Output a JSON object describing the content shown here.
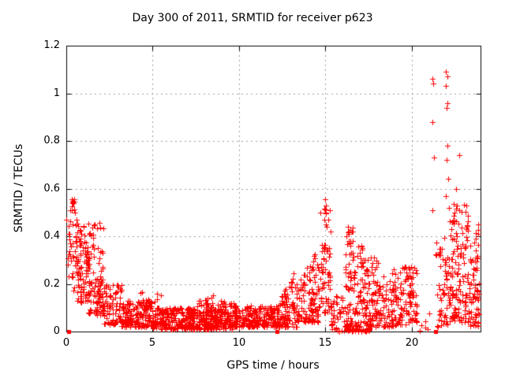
{
  "chart_data": {
    "type": "scatter",
    "title": "Day 300 of 2011, SRMTID for receiver p623",
    "xlabel": "GPS time / hours",
    "ylabel": "SRMTID / TECUs",
    "xlim": [
      0,
      24
    ],
    "ylim": [
      0,
      1.2
    ],
    "x_ticks": {
      "values": [
        0,
        5,
        10,
        15,
        20
      ],
      "labels": [
        "0",
        "5",
        "10",
        "15",
        "20"
      ]
    },
    "y_ticks": {
      "values": [
        0,
        0.2,
        0.4,
        0.6,
        0.8,
        1.0,
        1.2
      ],
      "labels": [
        "0",
        "0.2",
        "0.4",
        "0.6",
        "0.8",
        "1",
        "1.2"
      ]
    },
    "grid": true,
    "legend": "none",
    "colors": {
      "marker": "#ff0000",
      "border": "#000000",
      "grid": "#9c9c9c",
      "background": "#ffffff"
    },
    "marker_styles": {
      "main_series": "plus",
      "zero_flags": "filled-square"
    },
    "square_points": [
      [
        0.15,
        0
      ],
      [
        12.2,
        0
      ],
      [
        21.4,
        0
      ]
    ],
    "outlier_points": [
      [
        0.02,
        0.47
      ],
      [
        0.3,
        0.555
      ],
      [
        0.36,
        0.55
      ],
      [
        0.42,
        0.54
      ],
      [
        0.33,
        0.525
      ],
      [
        1.9,
        0.455
      ],
      [
        1.95,
        0.435
      ],
      [
        15.0,
        0.555
      ],
      [
        15.03,
        0.53
      ],
      [
        15.06,
        0.5
      ],
      [
        14.97,
        0.47
      ],
      [
        15.1,
        0.44
      ],
      [
        16.3,
        0.44
      ],
      [
        16.36,
        0.42
      ],
      [
        21.2,
        1.06
      ],
      [
        21.27,
        1.04
      ],
      [
        21.2,
        0.88
      ],
      [
        21.3,
        0.73
      ],
      [
        21.22,
        0.51
      ],
      [
        22.0,
        1.09
      ],
      [
        22.07,
        1.07
      ],
      [
        22.0,
        1.03
      ],
      [
        22.1,
        0.96
      ],
      [
        22.03,
        0.94
      ],
      [
        22.1,
        0.78
      ],
      [
        22.05,
        0.72
      ],
      [
        22.12,
        0.64
      ],
      [
        22.0,
        0.57
      ],
      [
        22.15,
        0.52
      ],
      [
        22.75,
        0.74
      ],
      [
        22.6,
        0.6
      ],
      [
        23.88,
        0.45
      ],
      [
        23.84,
        0.41
      ]
    ],
    "density_clusters": [
      {
        "x0": 0.05,
        "x1": 0.6,
        "n": 28,
        "y0": 0.15,
        "y1": 0.5,
        "pow": 0.8
      },
      {
        "x0": 0.25,
        "x1": 0.5,
        "n": 10,
        "y0": 0.5,
        "y1": 0.56,
        "pow": 1
      },
      {
        "x0": 0.5,
        "x1": 1.3,
        "n": 95,
        "y0": 0.12,
        "y1": 0.47,
        "pow": 1.3
      },
      {
        "x0": 1.3,
        "x1": 2.15,
        "n": 95,
        "y0": 0.07,
        "y1": 0.46,
        "pow": 1.7
      },
      {
        "x0": 2.15,
        "x1": 3.2,
        "n": 85,
        "y0": 0.03,
        "y1": 0.2,
        "pow": 1.7
      },
      {
        "x0": 3.2,
        "x1": 5.0,
        "n": 170,
        "y0": 0.02,
        "y1": 0.13,
        "pow": 1.5
      },
      {
        "x0": 5.0,
        "x1": 7.5,
        "n": 230,
        "y0": 0.01,
        "y1": 0.1,
        "pow": 1.4
      },
      {
        "x0": 7.5,
        "x1": 9.7,
        "n": 230,
        "y0": 0.01,
        "y1": 0.12,
        "pow": 1.4
      },
      {
        "x0": 9.7,
        "x1": 12.2,
        "n": 210,
        "y0": 0.02,
        "y1": 0.11,
        "pow": 1.4
      },
      {
        "x0": 4.3,
        "x1": 5.6,
        "n": 14,
        "y0": 0.1,
        "y1": 0.17,
        "pow": 1
      },
      {
        "x0": 7.6,
        "x1": 9.6,
        "n": 12,
        "y0": 0.1,
        "y1": 0.16,
        "pow": 1
      },
      {
        "x0": 12.2,
        "x1": 13.4,
        "n": 115,
        "y0": 0.02,
        "y1": 0.12,
        "y1_end": 0.28,
        "pow": 1.6
      },
      {
        "x0": 13.4,
        "x1": 14.7,
        "n": 115,
        "y0": 0.04,
        "y1": 0.2,
        "y1_end": 0.38,
        "pow": 1.6
      },
      {
        "x0": 14.7,
        "x1": 15.3,
        "n": 60,
        "y0": 0.08,
        "y1": 0.56,
        "pow": 1.6
      },
      {
        "x0": 15.3,
        "x1": 16.1,
        "n": 40,
        "y0": 0.0,
        "y1": 0.15,
        "pow": 1.4
      },
      {
        "x0": 16.2,
        "x1": 17.6,
        "n": 40,
        "y0": 0.0,
        "y1": 0.015,
        "pow": 1
      },
      {
        "x0": 16.15,
        "x1": 16.7,
        "n": 75,
        "y0": 0.02,
        "y1": 0.44,
        "pow": 1.6
      },
      {
        "x0": 16.7,
        "x1": 17.35,
        "n": 65,
        "y0": 0.02,
        "y1": 0.36,
        "pow": 1.6
      },
      {
        "x0": 17.35,
        "x1": 18.15,
        "n": 85,
        "y0": 0.02,
        "y1": 0.31,
        "pow": 1.6
      },
      {
        "x0": 18.15,
        "x1": 19.2,
        "n": 75,
        "y0": 0.02,
        "y1": 0.26,
        "pow": 1.5
      },
      {
        "x0": 19.2,
        "x1": 20.35,
        "n": 95,
        "y0": 0.03,
        "y1": 0.27,
        "pow": 1.4
      },
      {
        "x0": 20.4,
        "x1": 21.15,
        "n": 6,
        "y0": 0.0,
        "y1": 0.1,
        "pow": 1
      },
      {
        "x0": 21.4,
        "x1": 22.2,
        "n": 60,
        "y0": 0.02,
        "y1": 0.4,
        "pow": 1.3
      },
      {
        "x0": 22.2,
        "x1": 23.3,
        "n": 135,
        "y0": 0.04,
        "y1": 0.55,
        "pow": 1.6
      },
      {
        "x0": 23.3,
        "x1": 23.95,
        "n": 65,
        "y0": 0.02,
        "y1": 0.38,
        "pow": 1.5
      },
      {
        "x0": 23.7,
        "x1": 23.95,
        "n": 10,
        "y0": 0.05,
        "y1": 0.45,
        "pow": 1
      }
    ]
  }
}
